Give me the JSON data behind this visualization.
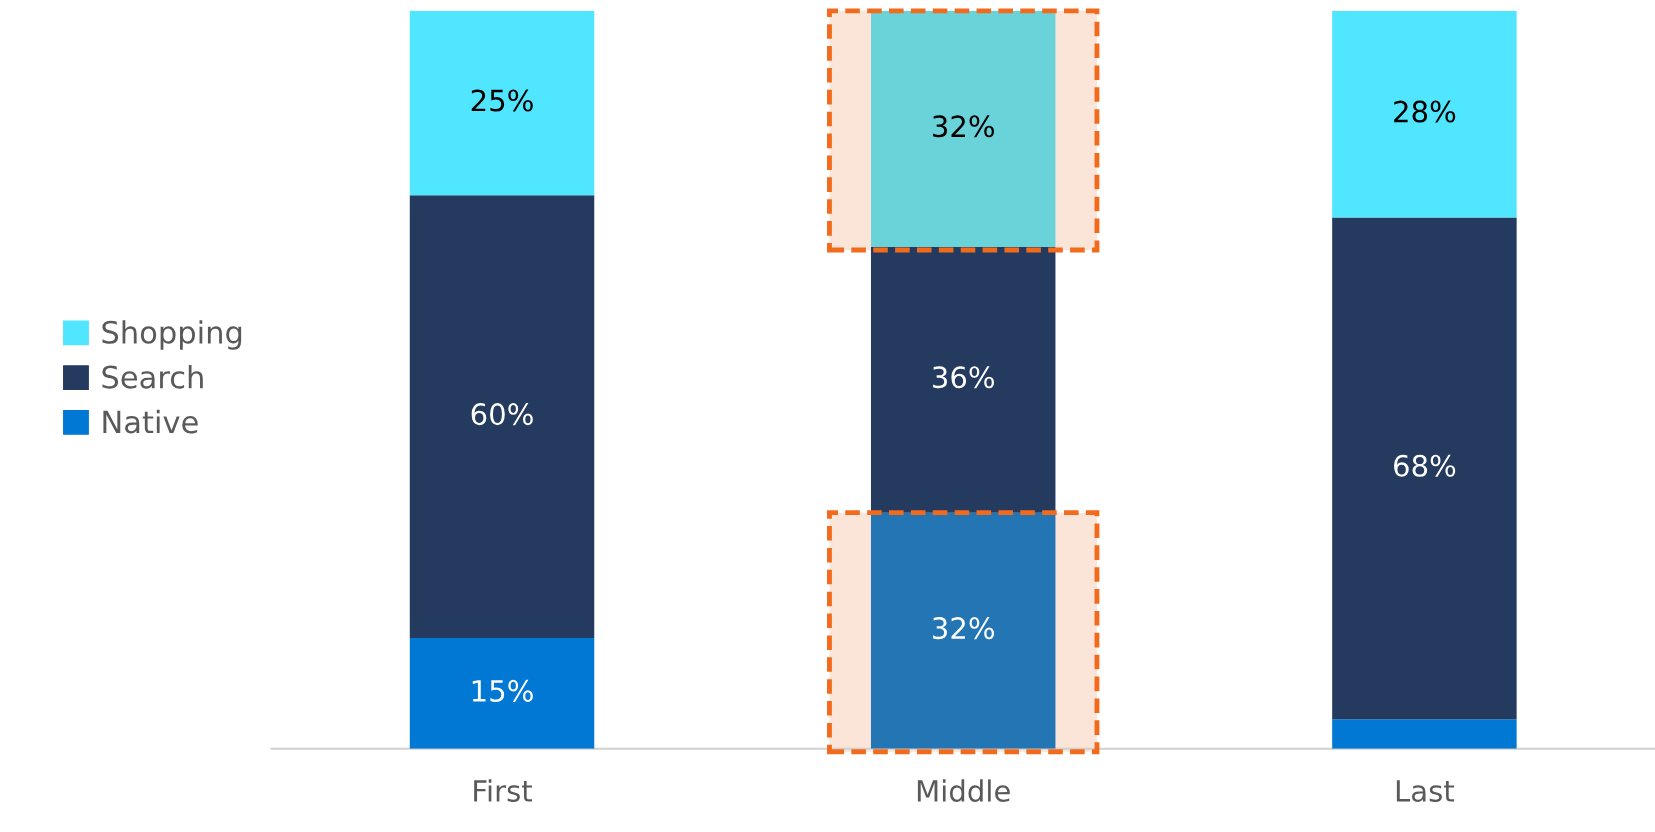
{
  "chart_data": {
    "type": "bar",
    "stacked": true,
    "categories": [
      "First",
      "Middle",
      "Last"
    ],
    "series": [
      {
        "name": "Native",
        "color": "#0078d4",
        "colors": [
          "#0078d4",
          "#2475b4",
          "#0078d4"
        ],
        "values": [
          15,
          32,
          4
        ],
        "value_labels": [
          "15%",
          "32%",
          null
        ]
      },
      {
        "name": "Search",
        "color": "#243a5e",
        "values": [
          60,
          36,
          68
        ],
        "value_labels": [
          "60%",
          "36%",
          "68%"
        ]
      },
      {
        "name": "Shopping",
        "color": "#50e6ff",
        "colors": [
          "#50e6ff",
          "#69d3d9",
          "#50e6ff"
        ],
        "values": [
          25,
          32,
          28
        ],
        "value_labels": [
          "25%",
          "32%",
          "28%"
        ]
      }
    ],
    "legend": "left",
    "grid": false
  }
}
